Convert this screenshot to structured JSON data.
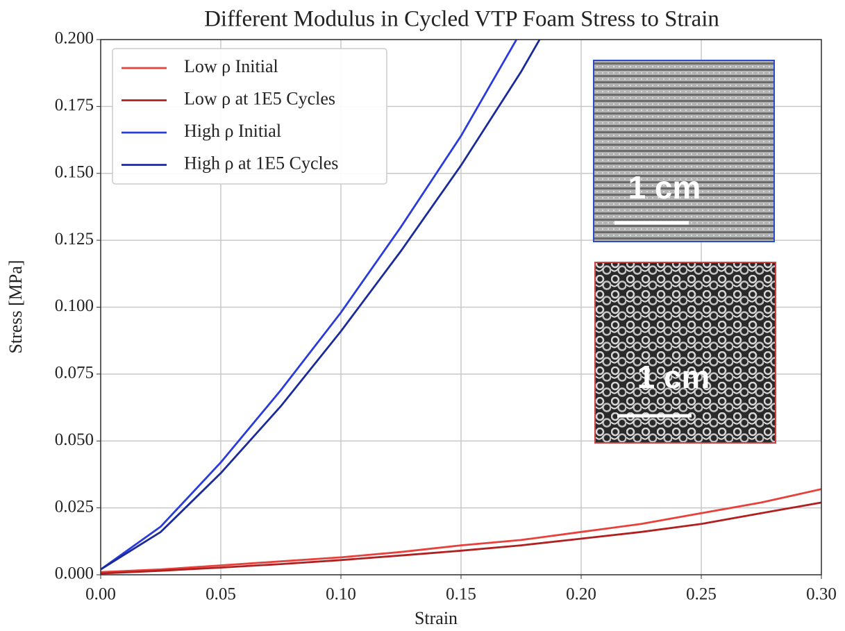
{
  "chart_data": {
    "type": "line",
    "title": "Different Modulus in Cycled VTP Foam Stress to Strain",
    "x_label": "Strain",
    "y_label": "Stress [MPa]",
    "x": [
      0,
      0.025,
      0.05,
      0.075,
      0.1,
      0.125,
      0.15,
      0.175,
      0.2,
      0.225,
      0.25,
      0.275,
      0.3
    ],
    "series": [
      {
        "name": "Low ρ Initial",
        "color": "#e8403a",
        "values": [
          0.001,
          0.002,
          0.0035,
          0.005,
          0.0065,
          0.0085,
          0.011,
          0.013,
          0.016,
          0.019,
          0.023,
          0.027,
          0.032
        ]
      },
      {
        "name": "Low ρ at 1E5 Cycles",
        "color": "#b02020",
        "values": [
          0.0005,
          0.0015,
          0.0027,
          0.004,
          0.0055,
          0.0072,
          0.009,
          0.011,
          0.0135,
          0.016,
          0.019,
          0.023,
          0.027
        ]
      },
      {
        "name": "High ρ Initial",
        "color": "#2a3bdc",
        "values": [
          0.002,
          0.018,
          0.042,
          0.069,
          0.098,
          0.13,
          0.164,
          0.203,
          null,
          null,
          null,
          null,
          null
        ]
      },
      {
        "name": "High ρ at 1E5 Cycles",
        "color": "#1a2a9a",
        "values": [
          0.002,
          0.016,
          0.038,
          0.063,
          0.091,
          0.121,
          0.153,
          0.188,
          0.227,
          null,
          null,
          null,
          null
        ]
      }
    ],
    "xlim": [
      0,
      0.3
    ],
    "ylim": [
      0,
      0.2
    ],
    "xticks": [
      {
        "value": 0,
        "label": "0.00"
      },
      {
        "value": 0.05,
        "label": "0.05"
      },
      {
        "value": 0.1,
        "label": "0.10"
      },
      {
        "value": 0.15,
        "label": "0.15"
      },
      {
        "value": 0.2,
        "label": "0.20"
      },
      {
        "value": 0.25,
        "label": "0.25"
      },
      {
        "value": 0.3,
        "label": "0.30"
      }
    ],
    "yticks": [
      {
        "value": 0,
        "label": "0.000"
      },
      {
        "value": 0.025,
        "label": "0.025"
      },
      {
        "value": 0.05,
        "label": "0.050"
      },
      {
        "value": 0.075,
        "label": "0.075"
      },
      {
        "value": 0.1,
        "label": "0.100"
      },
      {
        "value": 0.125,
        "label": "0.125"
      },
      {
        "value": 0.15,
        "label": "0.150"
      },
      {
        "value": 0.175,
        "label": "0.175"
      },
      {
        "value": 0.2,
        "label": "0.200"
      }
    ],
    "grid": true,
    "legend": "upper left",
    "insets": [
      {
        "label": "1 cm"
      },
      {
        "label": "1 cm"
      }
    ]
  }
}
